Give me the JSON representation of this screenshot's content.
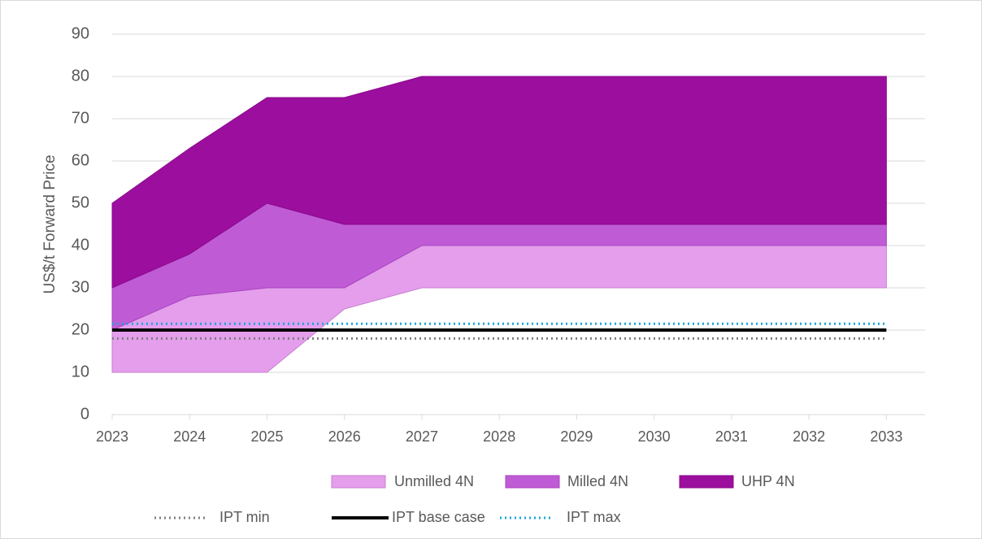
{
  "chart_data": {
    "type": "area",
    "y_label": "US$/t Forward Price",
    "x": [
      2023,
      2024,
      2025,
      2026,
      2027,
      2028,
      2029,
      2030,
      2031,
      2032,
      2033
    ],
    "xlim": [
      2023,
      2033.5
    ],
    "xticks": [
      2023,
      2024,
      2025,
      2026,
      2027,
      2028,
      2029,
      2030,
      2031,
      2032,
      2033
    ],
    "ylim": [
      0,
      90
    ],
    "yticks": [
      0,
      10,
      20,
      30,
      40,
      50,
      60,
      70,
      80,
      90
    ],
    "grid": true,
    "legend": "bottom",
    "series": [
      {
        "name": "Unmilled 4N",
        "color": "#e49eec",
        "low": [
          10,
          10,
          10,
          25,
          30,
          30,
          30,
          30,
          30,
          30,
          30
        ],
        "high": [
          20,
          28,
          30,
          30,
          40,
          40,
          40,
          40,
          40,
          40,
          40
        ]
      },
      {
        "name": "Milled 4N",
        "color": "#c05bd6",
        "low": [
          20,
          28,
          30,
          30,
          40,
          40,
          40,
          40,
          40,
          40,
          40
        ],
        "high": [
          30,
          38,
          50,
          45,
          45,
          45,
          45,
          45,
          45,
          45,
          45
        ]
      },
      {
        "name": "UHP 4N",
        "color": "#9c0e9e",
        "low": [
          30,
          38,
          50,
          45,
          45,
          45,
          45,
          45,
          45,
          45,
          45
        ],
        "high": [
          50,
          63,
          75,
          75,
          80,
          80,
          80,
          80,
          80,
          80,
          80
        ]
      }
    ],
    "lines": [
      {
        "name": "IPT min",
        "color": "#7f7f7f",
        "style": "dotted",
        "values": [
          18,
          18,
          18,
          18,
          18,
          18,
          18,
          18,
          18,
          18,
          18
        ]
      },
      {
        "name": "IPT base case",
        "color": "#000000",
        "style": "solid",
        "values": [
          20,
          20,
          20,
          20,
          20,
          20,
          20,
          20,
          20,
          20,
          20
        ]
      },
      {
        "name": "IPT max",
        "color": "#1aa6de",
        "style": "dotted",
        "values": [
          21.5,
          21.5,
          21.5,
          21.5,
          21.5,
          21.5,
          21.5,
          21.5,
          21.5,
          21.5,
          21.5
        ]
      }
    ]
  }
}
